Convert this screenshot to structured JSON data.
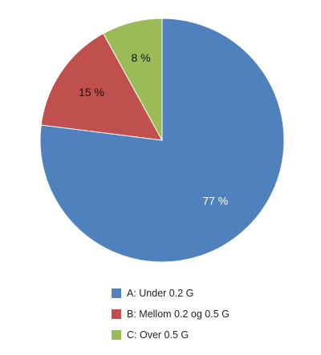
{
  "chart_data": {
    "type": "pie",
    "title": "",
    "slices": [
      {
        "label": "A: Under 0.2 G",
        "value": 77,
        "value_label": "77 %",
        "color": "#4f81bd",
        "label_color": "#ffffff"
      },
      {
        "label": "B: Mellom 0.2 og 0.5 G",
        "value": 15,
        "value_label": "15 %",
        "color": "#c0504d",
        "label_color": "#111111"
      },
      {
        "label": "C: Over 0.5 G",
        "value": 8,
        "value_label": "8 %",
        "color": "#9bbb59",
        "label_color": "#111111"
      }
    ],
    "start": "12 o'clock",
    "direction": "clockwise",
    "legend_position": "bottom"
  }
}
